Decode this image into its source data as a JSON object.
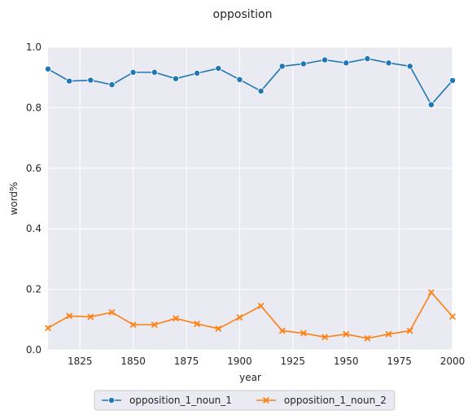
{
  "chart_data": {
    "type": "line",
    "title": "opposition",
    "xlabel": "year",
    "ylabel": "word%",
    "xlim": [
      1810,
      2000
    ],
    "ylim": [
      0,
      1.0
    ],
    "xticks": [
      1825,
      1850,
      1875,
      1900,
      1925,
      1950,
      1975,
      2000
    ],
    "yticks": [
      0.0,
      0.2,
      0.4,
      0.6,
      0.8,
      1.0
    ],
    "ytick_labels": [
      "0.0",
      "0.2",
      "0.4",
      "0.6",
      "0.8",
      "1.0"
    ],
    "grid": true,
    "legend_position": "bottom-center",
    "x": [
      1810,
      1820,
      1830,
      1840,
      1850,
      1860,
      1870,
      1880,
      1890,
      1900,
      1910,
      1920,
      1930,
      1940,
      1950,
      1960,
      1970,
      1980,
      1990,
      2000
    ],
    "series": [
      {
        "name": "opposition_1_noun_1",
        "color": "#1f77b4",
        "marker": "circle",
        "values": [
          0.928,
          0.888,
          0.891,
          0.876,
          0.917,
          0.917,
          0.896,
          0.914,
          0.93,
          0.893,
          0.855,
          0.937,
          0.945,
          0.958,
          0.948,
          0.962,
          0.948,
          0.937,
          0.81,
          0.89
        ]
      },
      {
        "name": "opposition_1_noun_2",
        "color": "#ff7f0e",
        "marker": "x",
        "values": [
          0.072,
          0.112,
          0.109,
          0.124,
          0.083,
          0.083,
          0.104,
          0.086,
          0.07,
          0.107,
          0.145,
          0.063,
          0.055,
          0.042,
          0.052,
          0.038,
          0.052,
          0.063,
          0.19,
          0.11
        ]
      }
    ]
  }
}
